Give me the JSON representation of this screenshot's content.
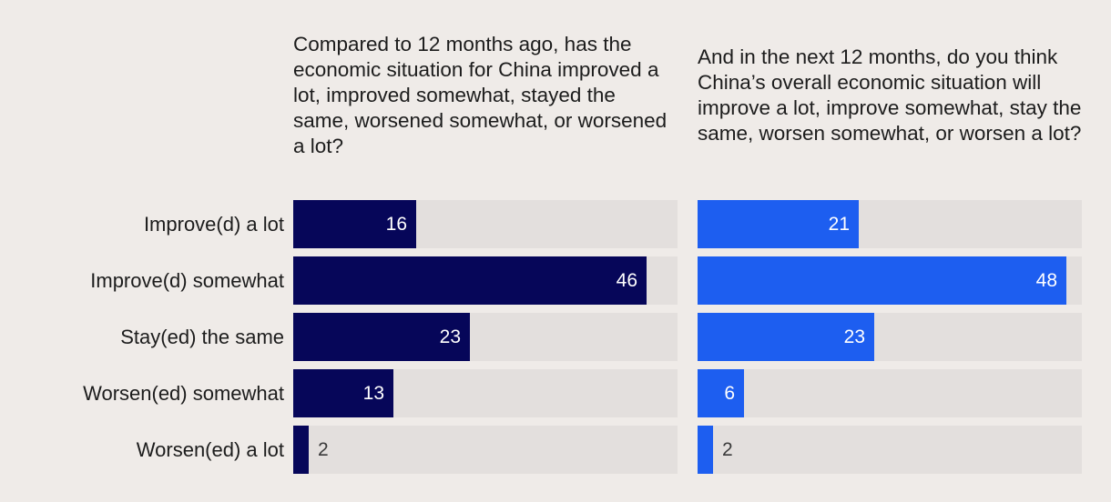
{
  "chart_data": {
    "type": "bar",
    "orientation": "horizontal",
    "categories": [
      "Improve(d) a lot",
      "Improve(d) somewhat",
      "Stay(ed) the same",
      "Worsen(ed) somewhat",
      "Worsen(ed) a lot"
    ],
    "xlim": [
      0,
      50
    ],
    "series": [
      {
        "title": "Compared to 12 months ago, has the economic situation for China improved a lot, improved somewhat, stayed the same, worsened somewhat, or worsened a lot?",
        "values": [
          16,
          46,
          23,
          13,
          2
        ],
        "color": "#060659"
      },
      {
        "title": "And in the next 12 months, do you think China’s overall economic situation will improve a lot, improve somewhat, stay the same, worsen somewhat, or worsen a lot?",
        "values": [
          21,
          48,
          23,
          6,
          2
        ],
        "color": "#1d5ef0"
      }
    ]
  },
  "colors": {
    "background": "#efebe8",
    "track": "#e3dfdd",
    "label_inside": "#ffffff",
    "label_outside": "#3a3a3a"
  }
}
